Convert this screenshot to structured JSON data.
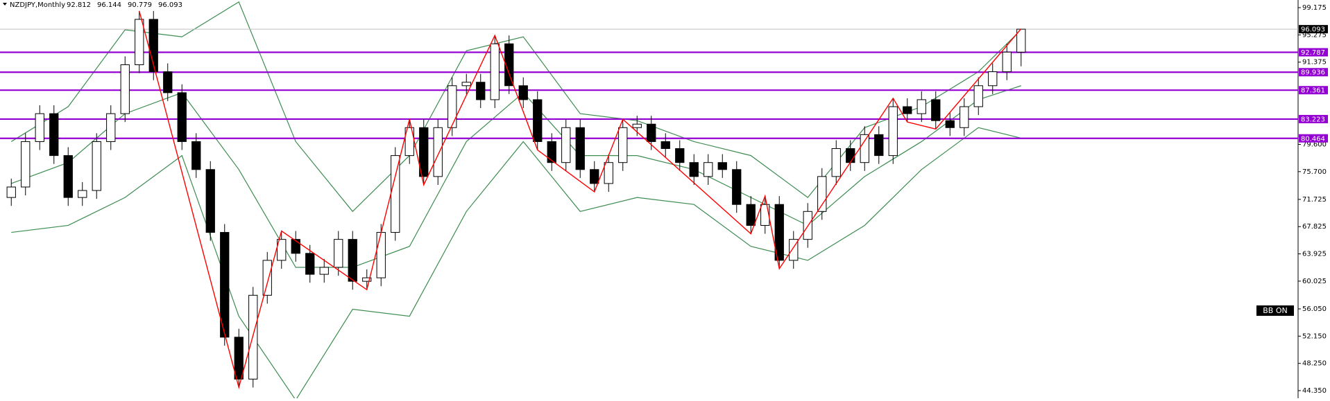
{
  "chart_data": {
    "type": "candlestick",
    "title": "NZDJPY,Monthly",
    "header_ohlc": [
      92.812,
      96.144,
      90.779,
      96.093
    ],
    "categories": [
      null,
      null,
      null,
      null,
      null,
      null,
      null,
      null,
      null,
      null,
      null,
      null,
      null,
      null,
      null,
      null,
      null,
      null,
      null,
      null,
      null,
      null,
      null,
      null,
      null,
      null,
      null,
      null,
      null,
      null,
      null,
      null,
      null,
      null,
      null,
      null,
      null,
      null,
      null,
      null,
      null,
      null,
      null,
      null,
      null,
      null,
      null,
      null,
      null,
      null,
      null,
      null,
      null,
      null,
      null,
      null,
      null,
      null,
      null,
      null,
      null,
      null,
      null,
      null,
      null,
      null,
      null,
      null,
      null,
      null,
      null,
      null
    ],
    "open": [
      72,
      73.5,
      80,
      84,
      78,
      72,
      73,
      80,
      84,
      91,
      97.5,
      90,
      87,
      80,
      76,
      67,
      52,
      46,
      58,
      63,
      66,
      64,
      61,
      62,
      66,
      60,
      60.5,
      67,
      78,
      82,
      75,
      82,
      88,
      88.5,
      86,
      94,
      88,
      86,
      80,
      77,
      82,
      76,
      74,
      77,
      82,
      82.5,
      80,
      79,
      77,
      75,
      77,
      76,
      71,
      68,
      71,
      63,
      66,
      70,
      75,
      79,
      77,
      81,
      78,
      85,
      84,
      86,
      83,
      82,
      85,
      88,
      90,
      92.812
    ],
    "high": [
      74.7,
      81.2,
      85.2,
      85.2,
      79.2,
      74.2,
      81.2,
      85.2,
      92.2,
      98.7,
      98.7,
      91.2,
      88.2,
      81.2,
      77.2,
      68.2,
      53.2,
      59.2,
      64.2,
      67.2,
      67.2,
      65.2,
      63.2,
      67.2,
      67.2,
      61.7,
      68.2,
      79.2,
      83.2,
      83.2,
      83.2,
      89.2,
      89.7,
      89.7,
      95.2,
      95.2,
      89.2,
      87.2,
      81.2,
      83.2,
      83.2,
      77.2,
      78.2,
      83.2,
      83.7,
      83.7,
      81.2,
      80.2,
      78.2,
      78.2,
      78.2,
      77.2,
      72.2,
      72.2,
      72.2,
      67.2,
      71.2,
      76.2,
      80.2,
      80.2,
      82.2,
      82.2,
      86.2,
      86.2,
      87.2,
      87.2,
      84.2,
      86.2,
      89.2,
      91.2,
      94.0,
      96.144
    ],
    "low": [
      70.8,
      72.3,
      78.8,
      76.8,
      70.8,
      70.8,
      71.8,
      78.8,
      82.8,
      89.8,
      88.8,
      85.8,
      78.8,
      74.8,
      65.8,
      50.8,
      44.8,
      44.8,
      56.8,
      61.8,
      62.8,
      59.8,
      59.8,
      60.8,
      58.8,
      58.8,
      59.3,
      65.8,
      76.8,
      73.8,
      73.8,
      80.8,
      86.8,
      84.8,
      84.8,
      86.8,
      84.8,
      78.8,
      75.8,
      75.8,
      74.8,
      72.8,
      72.8,
      75.8,
      80.8,
      78.8,
      77.8,
      75.8,
      73.8,
      73.8,
      74.8,
      69.8,
      66.8,
      66.8,
      61.8,
      61.8,
      64.8,
      68.8,
      73.8,
      75.8,
      75.8,
      76.8,
      76.8,
      82.8,
      82.8,
      81.8,
      80.8,
      80.8,
      83.8,
      86.8,
      88.8,
      90.779
    ],
    "close": [
      73.5,
      80,
      84,
      78,
      72,
      73,
      80,
      84,
      91,
      97.5,
      90,
      87,
      80,
      76,
      67,
      52,
      46,
      58,
      63,
      66,
      64,
      61,
      62,
      66,
      60,
      60.5,
      67,
      78,
      82,
      75,
      82,
      88,
      88.5,
      86,
      94,
      88,
      86,
      80,
      77,
      82,
      76,
      74,
      77,
      82,
      82.5,
      80,
      79,
      77,
      75,
      77,
      76,
      71,
      68,
      71,
      63,
      66,
      70,
      75,
      79,
      77,
      81,
      78,
      85,
      84,
      86,
      83,
      82,
      85,
      88,
      90,
      92.812,
      96.093
    ],
    "bull_color": "#ffffff",
    "bear_color": "#000000",
    "zigzag": {
      "color": "#ff0000",
      "x": [
        9,
        16,
        19,
        25,
        28,
        29,
        34,
        37,
        41,
        43,
        52,
        53,
        54,
        62,
        63,
        65,
        71
      ],
      "values": [
        98.7,
        44.8,
        67.2,
        58.8,
        83.2,
        73.8,
        95.2,
        78.8,
        72.8,
        83.2,
        66.8,
        72.2,
        61.8,
        86.2,
        82.8,
        81.8,
        96.144
      ]
    },
    "bands": [
      {
        "color": "#3c8c50",
        "x": [
          0,
          4,
          8,
          12,
          16,
          20,
          24,
          28,
          32,
          36,
          40,
          44,
          48,
          52,
          56,
          60,
          64,
          68,
          71
        ],
        "values": [
          80,
          85,
          96,
          95,
          100,
          80,
          70,
          78,
          93,
          95,
          84,
          83,
          80,
          78,
          72,
          82,
          85,
          90,
          96
        ]
      },
      {
        "color": "#3c8c50",
        "x": [
          0,
          4,
          8,
          12,
          16,
          20,
          24,
          28,
          32,
          36,
          40,
          44,
          48,
          52,
          56,
          60,
          64,
          68,
          71
        ],
        "values": [
          74,
          77,
          84,
          87,
          76,
          62,
          62,
          65,
          80,
          87,
          78,
          78,
          76,
          72,
          68,
          75,
          80,
          86,
          88
        ]
      },
      {
        "color": "#3c8c50",
        "x": [
          0,
          4,
          8,
          12,
          16,
          20,
          24,
          28,
          32,
          36,
          40,
          44,
          48,
          52,
          56,
          60,
          64,
          68,
          71
        ],
        "values": [
          67,
          68,
          72,
          78,
          55,
          43,
          56,
          55,
          70,
          80,
          70,
          72,
          71,
          65,
          63,
          68,
          76,
          82,
          80.5
        ]
      }
    ],
    "levels": [
      92.787,
      89.936,
      87.361,
      83.223,
      80.464
    ],
    "level_color": "#9400d3",
    "current_price": 96.093,
    "badge": "BB ON",
    "ylim": [
      43.26,
      100.27
    ],
    "yticks": [
      99.175,
      95.275,
      91.375,
      {
        "value": 79.6,
        "label": "79.600"
      },
      {
        "value": 75.7,
        "label": "75.700"
      },
      71.725,
      67.825,
      63.925,
      60.025,
      {
        "value": 56.05,
        "label": "56.050"
      },
      {
        "value": 52.15,
        "label": "52.150"
      },
      {
        "value": 48.25,
        "label": "48.250"
      },
      {
        "value": 44.35,
        "label": "44.350"
      }
    ]
  }
}
